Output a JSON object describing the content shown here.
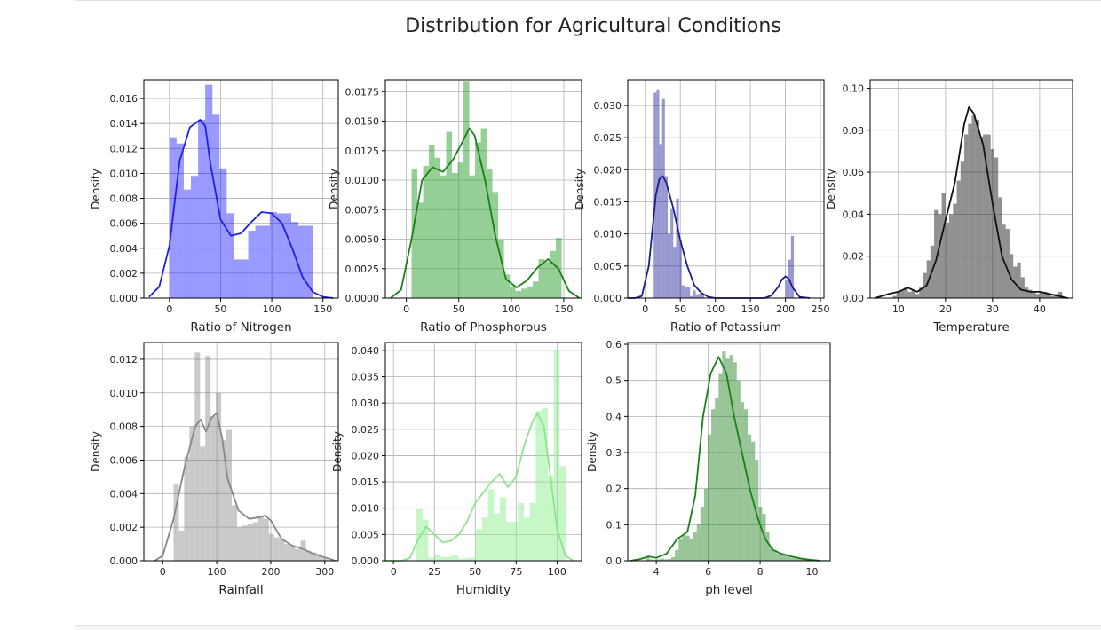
{
  "figure_title": "Distribution for Agricultural Conditions",
  "chart_data": [
    {
      "type": "histogram",
      "xlabel": "Ratio of Nitrogen",
      "ylabel": "Density",
      "xlim": [
        -25,
        165
      ],
      "ylim": [
        0,
        0.0175
      ],
      "xticks": [
        0,
        50,
        100,
        150
      ],
      "yticks": [
        0.0,
        0.002,
        0.004,
        0.006,
        0.008,
        0.01,
        0.012,
        0.014,
        0.016
      ],
      "tick_decimals": 3,
      "bar_color": "#0000ff",
      "bar_opacity": 0.4,
      "curve_color": "#2020e0",
      "bins": {
        "start": 0,
        "width": 7,
        "values": [
          0.0129,
          0.0124,
          0.0087,
          0.0098,
          0.0143,
          0.0171,
          0.0147,
          0.0104,
          0.0068,
          0.0031,
          0.0031,
          0.0054,
          0.0058,
          0.0058,
          0.0069,
          0.0068,
          0.0068,
          0.0061,
          0.0058,
          0.0058
        ]
      },
      "kde": {
        "x": [
          -20,
          -10,
          0,
          10,
          20,
          30,
          35,
          40,
          50,
          60,
          70,
          80,
          90,
          100,
          110,
          120,
          130,
          140,
          150,
          160
        ],
        "y": [
          0.0001,
          0.0009,
          0.0042,
          0.011,
          0.0137,
          0.0143,
          0.0138,
          0.0108,
          0.0063,
          0.005,
          0.0052,
          0.0061,
          0.0069,
          0.0068,
          0.006,
          0.004,
          0.0017,
          0.0005,
          0.0001,
          0.0
        ]
      }
    },
    {
      "type": "histogram",
      "xlabel": "Ratio of Phosphorous",
      "ylabel": "Density",
      "xlim": [
        -20,
        167
      ],
      "ylim": [
        0,
        0.0185
      ],
      "xticks": [
        0,
        50,
        100,
        150
      ],
      "yticks": [
        0.0,
        0.0025,
        0.005,
        0.0075,
        0.01,
        0.0125,
        0.015,
        0.0175
      ],
      "tick_decimals": 4,
      "bar_color": "#2ca02c",
      "bar_opacity": 0.5,
      "curve_color": "#1a7f1a",
      "bins": {
        "start": 5,
        "width": 5.5,
        "values": [
          0.0109,
          0.0081,
          0.0112,
          0.013,
          0.0119,
          0.0104,
          0.0141,
          0.0106,
          0.0115,
          0.0184,
          0.0104,
          0.0132,
          0.0144,
          0.0109,
          0.009,
          0.0049,
          0.002,
          0.001,
          0.0006,
          0.0008,
          0.001,
          0.0014,
          0.0033,
          0.0031,
          0.004,
          0.0051
        ]
      },
      "kde": {
        "x": [
          -15,
          -5,
          5,
          15,
          25,
          35,
          45,
          55,
          60,
          65,
          75,
          85,
          95,
          105,
          115,
          125,
          135,
          145,
          155,
          165
        ],
        "y": [
          0.0,
          0.0007,
          0.005,
          0.01,
          0.0111,
          0.0107,
          0.0118,
          0.0135,
          0.0144,
          0.0138,
          0.01,
          0.0052,
          0.0016,
          0.0009,
          0.0015,
          0.0026,
          0.0033,
          0.0025,
          0.0006,
          0.0
        ]
      }
    },
    {
      "type": "histogram",
      "xlabel": "Ratio of Potassium",
      "ylabel": "Density",
      "xlim": [
        -25,
        255
      ],
      "ylim": [
        0,
        0.034
      ],
      "xticks": [
        0,
        50,
        100,
        150,
        200,
        250
      ],
      "yticks": [
        0.0,
        0.005,
        0.01,
        0.015,
        0.02,
        0.025,
        0.03
      ],
      "tick_decimals": 3,
      "bar_color": "#00008b",
      "bar_opacity": 0.4,
      "curve_color": "#1c1c8c",
      "bins": {
        "start": 12,
        "width": 4,
        "values": [
          0.032,
          0.0325,
          0.024,
          0.031,
          0.019,
          0.01,
          0.014,
          0.008,
          0.0155,
          0.009,
          0.002,
          0.0017,
          0.0018,
          0.0003,
          0.0012,
          0.0006,
          0.0007,
          0.0006,
          0.0,
          0.0,
          0.0,
          0.0,
          0.0,
          0.0,
          0.0,
          0.0,
          0.0,
          0.0,
          0.0,
          0.0,
          0.0,
          0.0,
          0.0,
          0.0,
          0.0,
          0.0,
          0.0,
          0.0,
          0.0,
          0.0,
          0.0,
          0.0,
          0.0,
          0.0,
          0.0,
          0.0,
          0.0,
          0.0028,
          0.006,
          0.0097
        ]
      },
      "kde": {
        "x": [
          -25,
          -15,
          -5,
          5,
          15,
          20,
          25,
          30,
          40,
          50,
          60,
          70,
          80,
          90,
          100,
          120,
          150,
          170,
          180,
          190,
          195,
          200,
          205,
          210,
          220,
          235
        ],
        "y": [
          0.0,
          0.0,
          0.0003,
          0.005,
          0.016,
          0.0185,
          0.019,
          0.018,
          0.014,
          0.009,
          0.005,
          0.002,
          0.0008,
          0.0002,
          0.0,
          0.0,
          0.0,
          0.0,
          0.0004,
          0.0018,
          0.0029,
          0.0034,
          0.003,
          0.0017,
          0.0002,
          0.0
        ]
      }
    },
    {
      "type": "histogram",
      "xlabel": "Temperature",
      "ylabel": "Density",
      "xlim": [
        4,
        47
      ],
      "ylim": [
        0,
        0.104
      ],
      "xticks": [
        10,
        20,
        30,
        40
      ],
      "yticks": [
        0.0,
        0.02,
        0.04,
        0.06,
        0.08,
        0.1
      ],
      "tick_decimals": 2,
      "bar_color": "#222222",
      "bar_opacity": 0.5,
      "curve_color": "#111111",
      "bins": {
        "start": 8.8,
        "width": 0.8,
        "values": [
          0.001,
          0.003,
          0.004,
          0.005,
          0.003,
          0.004,
          0.002,
          0.005,
          0.012,
          0.018,
          0.025,
          0.042,
          0.04,
          0.05,
          0.036,
          0.04,
          0.045,
          0.056,
          0.065,
          0.078,
          0.083,
          0.087,
          0.085,
          0.077,
          0.078,
          0.078,
          0.071,
          0.067,
          0.048,
          0.035,
          0.033,
          0.021,
          0.015,
          0.017,
          0.01,
          0.005,
          0.004,
          0.003,
          0.002,
          0.003,
          0.003,
          0.002,
          0.001,
          0.002,
          0.003
        ]
      },
      "kde": {
        "x": [
          5,
          8,
          10,
          12,
          14,
          16,
          18,
          20,
          22,
          24,
          25,
          26,
          28,
          30,
          32,
          34,
          36,
          38,
          40,
          42,
          44,
          46
        ],
        "y": [
          0.0,
          0.002,
          0.003,
          0.005,
          0.003,
          0.006,
          0.018,
          0.037,
          0.055,
          0.083,
          0.091,
          0.088,
          0.073,
          0.045,
          0.02,
          0.009,
          0.004,
          0.003,
          0.003,
          0.002,
          0.001,
          0.0
        ]
      }
    },
    {
      "type": "histogram",
      "xlabel": "Rainfall",
      "ylabel": "Density",
      "xlim": [
        -35,
        325
      ],
      "ylim": [
        0,
        0.013
      ],
      "xticks": [
        0,
        100,
        200,
        300
      ],
      "yticks": [
        0.0,
        0.002,
        0.004,
        0.006,
        0.008,
        0.01,
        0.012
      ],
      "tick_decimals": 3,
      "bar_color": "#888888",
      "bar_opacity": 0.45,
      "curve_color": "#888888",
      "bins": {
        "start": 20,
        "width": 9.8,
        "values": [
          0.0046,
          0.0018,
          0.0062,
          0.008,
          0.0124,
          0.0068,
          0.0122,
          0.0086,
          0.01,
          0.0072,
          0.0078,
          0.0033,
          0.002,
          0.0021,
          0.0022,
          0.0023,
          0.0027,
          0.0025,
          0.0016,
          0.0014,
          0.0013,
          0.001,
          0.0009,
          0.0007,
          0.0012,
          0.0006,
          0.0005,
          0.0004,
          0.0002
        ]
      },
      "kde": {
        "x": [
          -15,
          0,
          20,
          40,
          60,
          70,
          80,
          90,
          100,
          110,
          120,
          140,
          160,
          180,
          190,
          200,
          220,
          240,
          260,
          280,
          300,
          320
        ],
        "y": [
          0.0,
          0.0003,
          0.0025,
          0.0055,
          0.008,
          0.0084,
          0.0077,
          0.0085,
          0.0088,
          0.0073,
          0.0049,
          0.003,
          0.0025,
          0.0026,
          0.0027,
          0.0024,
          0.0013,
          0.0009,
          0.0007,
          0.0004,
          0.0002,
          0.0
        ]
      }
    },
    {
      "type": "histogram",
      "xlabel": "Humidity",
      "ylabel": "Density",
      "xlim": [
        -5,
        115
      ],
      "ylim": [
        0,
        0.0415
      ],
      "xticks": [
        0,
        25,
        50,
        75,
        100
      ],
      "yticks": [
        0.0,
        0.005,
        0.01,
        0.015,
        0.02,
        0.025,
        0.03,
        0.035,
        0.04
      ],
      "tick_decimals": 3,
      "bar_color": "#90ee90",
      "bar_opacity": 0.5,
      "curve_color": "#8fe48f",
      "bins": {
        "start": 14,
        "width": 3.65,
        "values": [
          0.0098,
          0.0078,
          0.0006,
          0.001,
          0.0007,
          0.0008,
          0.001,
          0.0004,
          0.0005,
          0.0006,
          0.006,
          0.0082,
          0.0136,
          0.009,
          0.0121,
          0.0074,
          0.0074,
          0.011,
          0.0082,
          0.011,
          0.0285,
          0.029,
          0.016,
          0.04,
          0.018
        ]
      },
      "kde": {
        "x": [
          -5,
          5,
          10,
          15,
          20,
          25,
          30,
          35,
          40,
          45,
          50,
          55,
          60,
          65,
          70,
          75,
          80,
          85,
          88,
          92,
          96,
          100,
          105,
          110
        ],
        "y": [
          0.0,
          0.0,
          0.0005,
          0.004,
          0.0065,
          0.005,
          0.0035,
          0.0038,
          0.005,
          0.0075,
          0.011,
          0.013,
          0.015,
          0.0165,
          0.014,
          0.016,
          0.022,
          0.0265,
          0.028,
          0.0255,
          0.016,
          0.006,
          0.001,
          0.0
        ]
      }
    },
    {
      "type": "histogram",
      "xlabel": "ph level",
      "ylabel": "Density",
      "xlim": [
        2.9,
        10.7
      ],
      "ylim": [
        0,
        0.605
      ],
      "xticks": [
        4,
        6,
        8,
        10
      ],
      "yticks": [
        0.0,
        0.1,
        0.2,
        0.3,
        0.4,
        0.5,
        0.6
      ],
      "tick_decimals": 1,
      "bar_color": "#1a7f1a",
      "bar_opacity": 0.45,
      "curve_color": "#1a7f1a",
      "bins": {
        "start": 3.6,
        "width": 0.14,
        "values": [
          0.01,
          0.004,
          0.003,
          0.004,
          0.006,
          0.004,
          0.005,
          0.01,
          0.03,
          0.06,
          0.07,
          0.07,
          0.06,
          0.08,
          0.1,
          0.15,
          0.2,
          0.35,
          0.42,
          0.45,
          0.52,
          0.58,
          0.56,
          0.57,
          0.55,
          0.5,
          0.44,
          0.42,
          0.35,
          0.33,
          0.28,
          0.15,
          0.13,
          0.08,
          0.04,
          0.03,
          0.02,
          0.015,
          0.015,
          0.01,
          0.008,
          0.007,
          0.006,
          0.006,
          0.005,
          0.004,
          0.004,
          0.003,
          0.002,
          0.002
        ]
      },
      "kde": {
        "x": [
          3.0,
          3.4,
          3.7,
          4.0,
          4.4,
          4.8,
          5.2,
          5.5,
          5.8,
          6.1,
          6.4,
          6.7,
          7.0,
          7.3,
          7.6,
          7.9,
          8.2,
          8.5,
          8.8,
          9.2,
          9.6,
          10.0,
          10.3
        ],
        "y": [
          0.0,
          0.005,
          0.012,
          0.008,
          0.02,
          0.06,
          0.08,
          0.18,
          0.4,
          0.52,
          0.565,
          0.52,
          0.4,
          0.3,
          0.2,
          0.12,
          0.06,
          0.03,
          0.02,
          0.012,
          0.006,
          0.002,
          0.0
        ]
      }
    }
  ]
}
